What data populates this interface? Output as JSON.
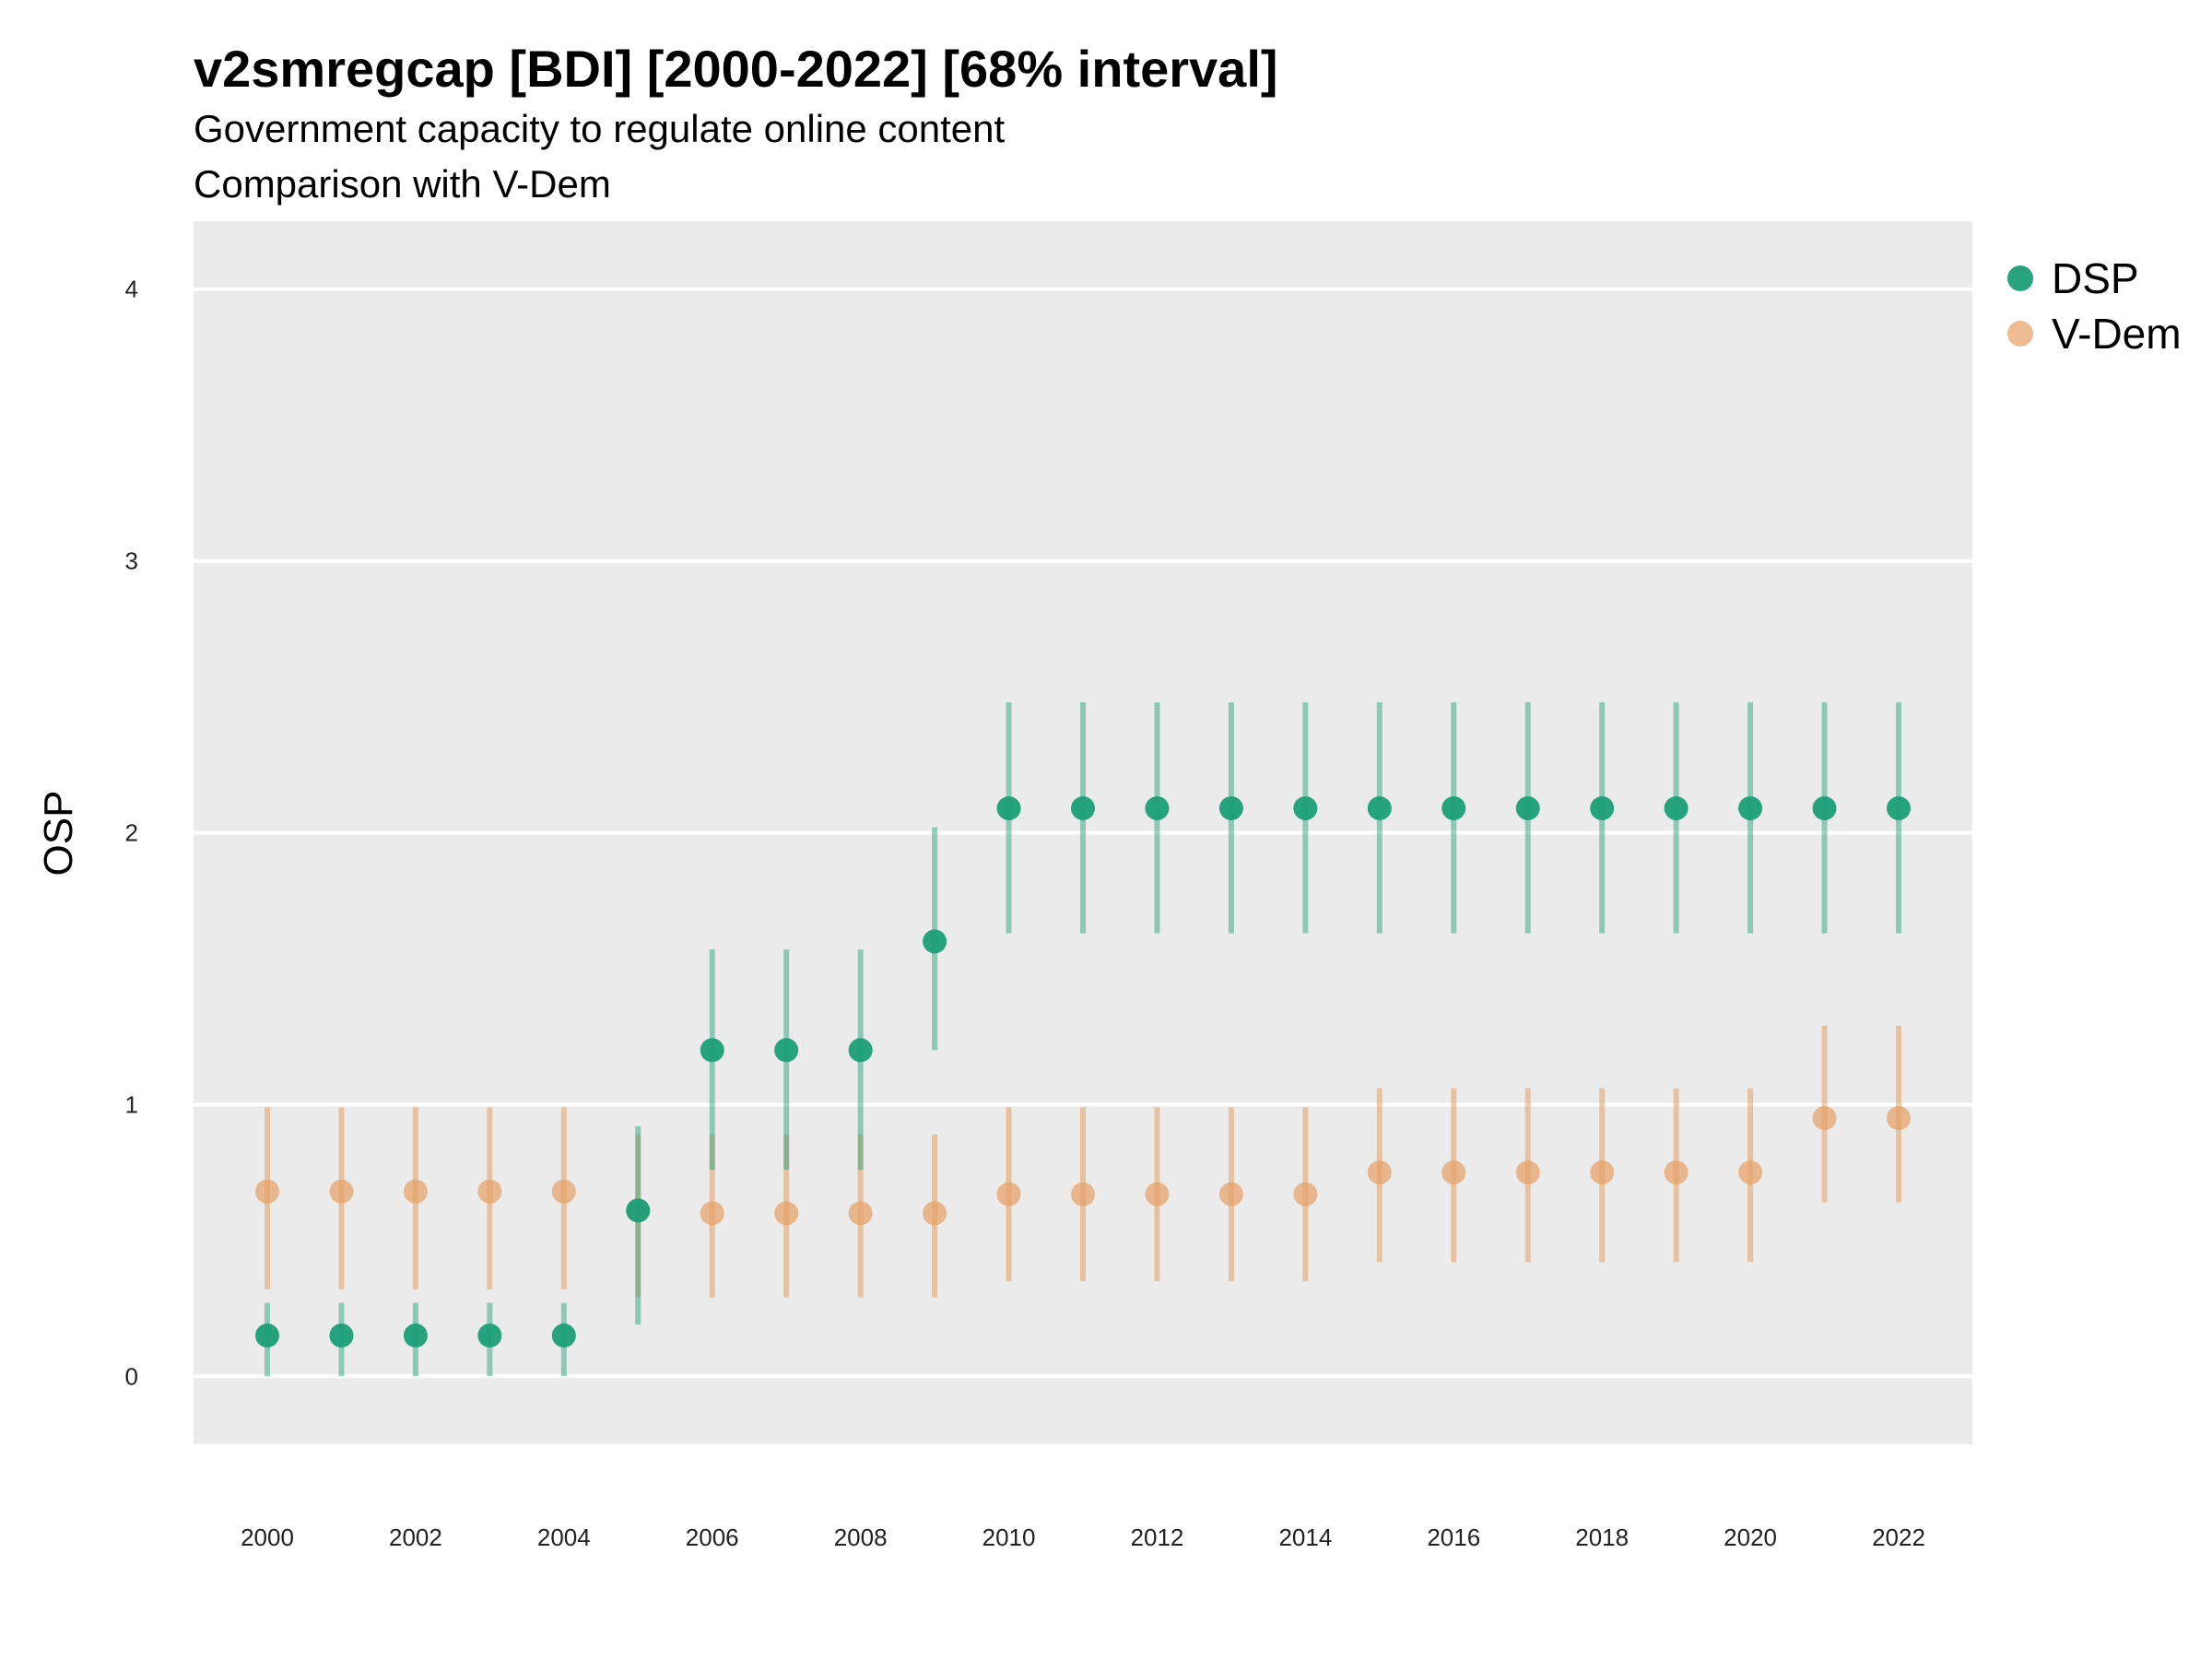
{
  "chart_data": {
    "type": "scatter",
    "title": "v2smregcap [BDI] [2000-2022] [68% interval]",
    "subtitle": "Government capacity to regulate online content",
    "subtitle2": "Comparison with V-Dem",
    "ylabel": "OSP",
    "xlabel": "",
    "ylim": [
      -0.25,
      4.25
    ],
    "yticks": [
      "0",
      "1",
      "2",
      "3",
      "4"
    ],
    "xticks": [
      "2000",
      "2002",
      "2004",
      "2006",
      "2008",
      "2010",
      "2012",
      "2014",
      "2016",
      "2018",
      "2020",
      "2022"
    ],
    "grid": true,
    "legend_position": "right",
    "x": [
      2000,
      2001,
      2002,
      2003,
      2004,
      2005,
      2006,
      2007,
      2008,
      2009,
      2010,
      2011,
      2012,
      2013,
      2014,
      2015,
      2016,
      2017,
      2018,
      2019,
      2020,
      2021,
      2022
    ],
    "series": [
      {
        "name": "DSP",
        "color": "#1b9e77",
        "values": [
          0.15,
          0.15,
          0.15,
          0.15,
          0.15,
          0.61,
          1.2,
          1.2,
          1.2,
          1.6,
          2.09,
          2.09,
          2.09,
          2.09,
          2.09,
          2.09,
          2.09,
          2.09,
          2.09,
          2.09,
          2.09,
          2.09,
          2.09
        ],
        "lower": [
          0.0,
          0.0,
          0.0,
          0.0,
          0.0,
          0.19,
          0.76,
          0.76,
          0.76,
          1.2,
          1.63,
          1.63,
          1.63,
          1.63,
          1.63,
          1.63,
          1.63,
          1.63,
          1.63,
          1.63,
          1.63,
          1.63,
          1.63
        ],
        "upper": [
          0.27,
          0.27,
          0.27,
          0.27,
          0.27,
          0.92,
          1.57,
          1.57,
          1.57,
          2.02,
          2.48,
          2.48,
          2.48,
          2.48,
          2.48,
          2.48,
          2.48,
          2.48,
          2.48,
          2.48,
          2.48,
          2.48,
          2.48
        ]
      },
      {
        "name": "V-Dem",
        "color": "#e69f65",
        "values": [
          0.68,
          0.68,
          0.68,
          0.68,
          0.68,
          0.61,
          0.6,
          0.6,
          0.6,
          0.6,
          0.67,
          0.67,
          0.67,
          0.67,
          0.67,
          0.75,
          0.75,
          0.75,
          0.75,
          0.75,
          0.75,
          0.95,
          0.95
        ],
        "lower": [
          0.32,
          0.32,
          0.32,
          0.32,
          0.32,
          0.29,
          0.29,
          0.29,
          0.29,
          0.29,
          0.35,
          0.35,
          0.35,
          0.35,
          0.35,
          0.42,
          0.42,
          0.42,
          0.42,
          0.42,
          0.42,
          0.64,
          0.64
        ],
        "upper": [
          0.99,
          0.99,
          0.99,
          0.99,
          0.99,
          0.89,
          0.89,
          0.89,
          0.89,
          0.89,
          0.99,
          0.99,
          0.99,
          0.99,
          0.99,
          1.06,
          1.06,
          1.06,
          1.06,
          1.06,
          1.06,
          1.29,
          1.29
        ]
      }
    ]
  }
}
